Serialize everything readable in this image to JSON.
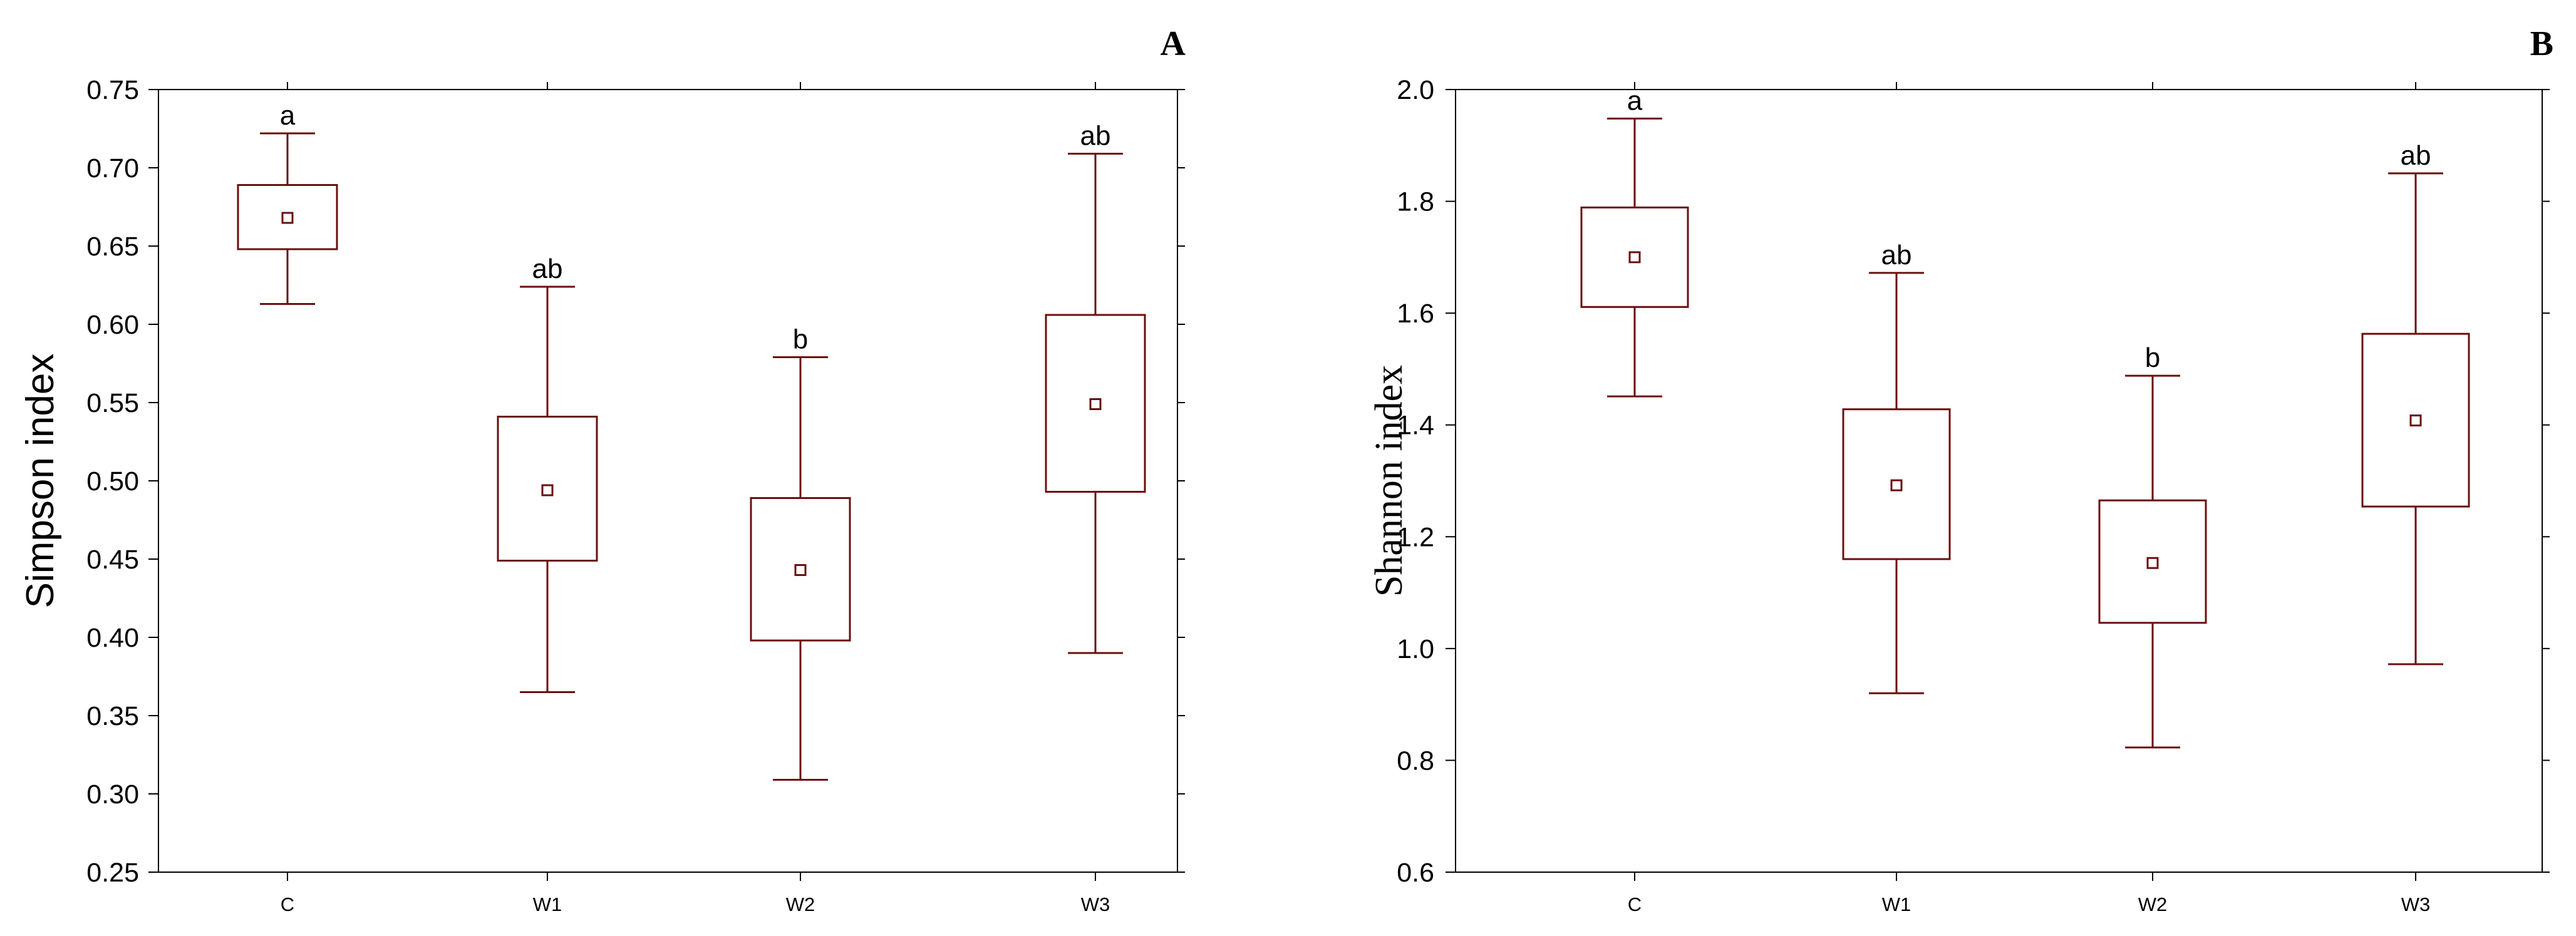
{
  "colors": {
    "box": "#6b0f0f",
    "frame": "#000000",
    "background": "#ffffff"
  },
  "chart_data": [
    {
      "type": "box",
      "panel_label": "A",
      "ylabel": "Simpson index",
      "xlabel": "",
      "ylim": [
        0.25,
        0.75
      ],
      "yticks": [
        0.25,
        0.3,
        0.35,
        0.4,
        0.45,
        0.5,
        0.55,
        0.6,
        0.65,
        0.7,
        0.75
      ],
      "ytick_labels": [
        "0.25",
        "0.30",
        "0.35",
        "0.40",
        "0.45",
        "0.50",
        "0.55",
        "0.60",
        "0.65",
        "0.70",
        "0.75"
      ],
      "categories": [
        "C",
        "W1",
        "W2",
        "W3"
      ],
      "boxes": [
        {
          "category": "C",
          "whisker_low": 0.613,
          "q1": 0.648,
          "mean": 0.668,
          "q3": 0.689,
          "whisker_high": 0.722,
          "group": "a"
        },
        {
          "category": "W1",
          "whisker_low": 0.365,
          "q1": 0.449,
          "mean": 0.494,
          "q3": 0.541,
          "whisker_high": 0.624,
          "group": "ab"
        },
        {
          "category": "W2",
          "whisker_low": 0.309,
          "q1": 0.398,
          "mean": 0.443,
          "q3": 0.489,
          "whisker_high": 0.579,
          "group": "b"
        },
        {
          "category": "W3",
          "whisker_low": 0.39,
          "q1": 0.493,
          "mean": 0.549,
          "q3": 0.606,
          "whisker_high": 0.709,
          "group": "ab"
        }
      ],
      "grid": false
    },
    {
      "type": "box",
      "panel_label": "B",
      "ylabel": "Shannon index",
      "xlabel": "",
      "ylim": [
        0.6,
        2.0
      ],
      "yticks": [
        0.6,
        0.8,
        1.0,
        1.2,
        1.4,
        1.6,
        1.8,
        2.0
      ],
      "ytick_labels": [
        "0.6",
        "0.8",
        "1.0",
        "1.2",
        "1.4",
        "1.6",
        "1.8",
        "2.0"
      ],
      "categories": [
        "C",
        "W1",
        "W2",
        "W3"
      ],
      "boxes": [
        {
          "category": "C",
          "whisker_low": 1.451,
          "q1": 1.611,
          "mean": 1.7,
          "q3": 1.789,
          "whisker_high": 1.948,
          "group": "a"
        },
        {
          "category": "W1",
          "whisker_low": 0.92,
          "q1": 1.16,
          "mean": 1.292,
          "q3": 1.428,
          "whisker_high": 1.672,
          "group": "ab"
        },
        {
          "category": "W2",
          "whisker_low": 0.823,
          "q1": 1.046,
          "mean": 1.153,
          "q3": 1.265,
          "whisker_high": 1.488,
          "group": "b"
        },
        {
          "category": "W3",
          "whisker_low": 0.972,
          "q1": 1.254,
          "mean": 1.408,
          "q3": 1.563,
          "whisker_high": 1.85,
          "group": "ab"
        }
      ],
      "grid": false
    }
  ]
}
